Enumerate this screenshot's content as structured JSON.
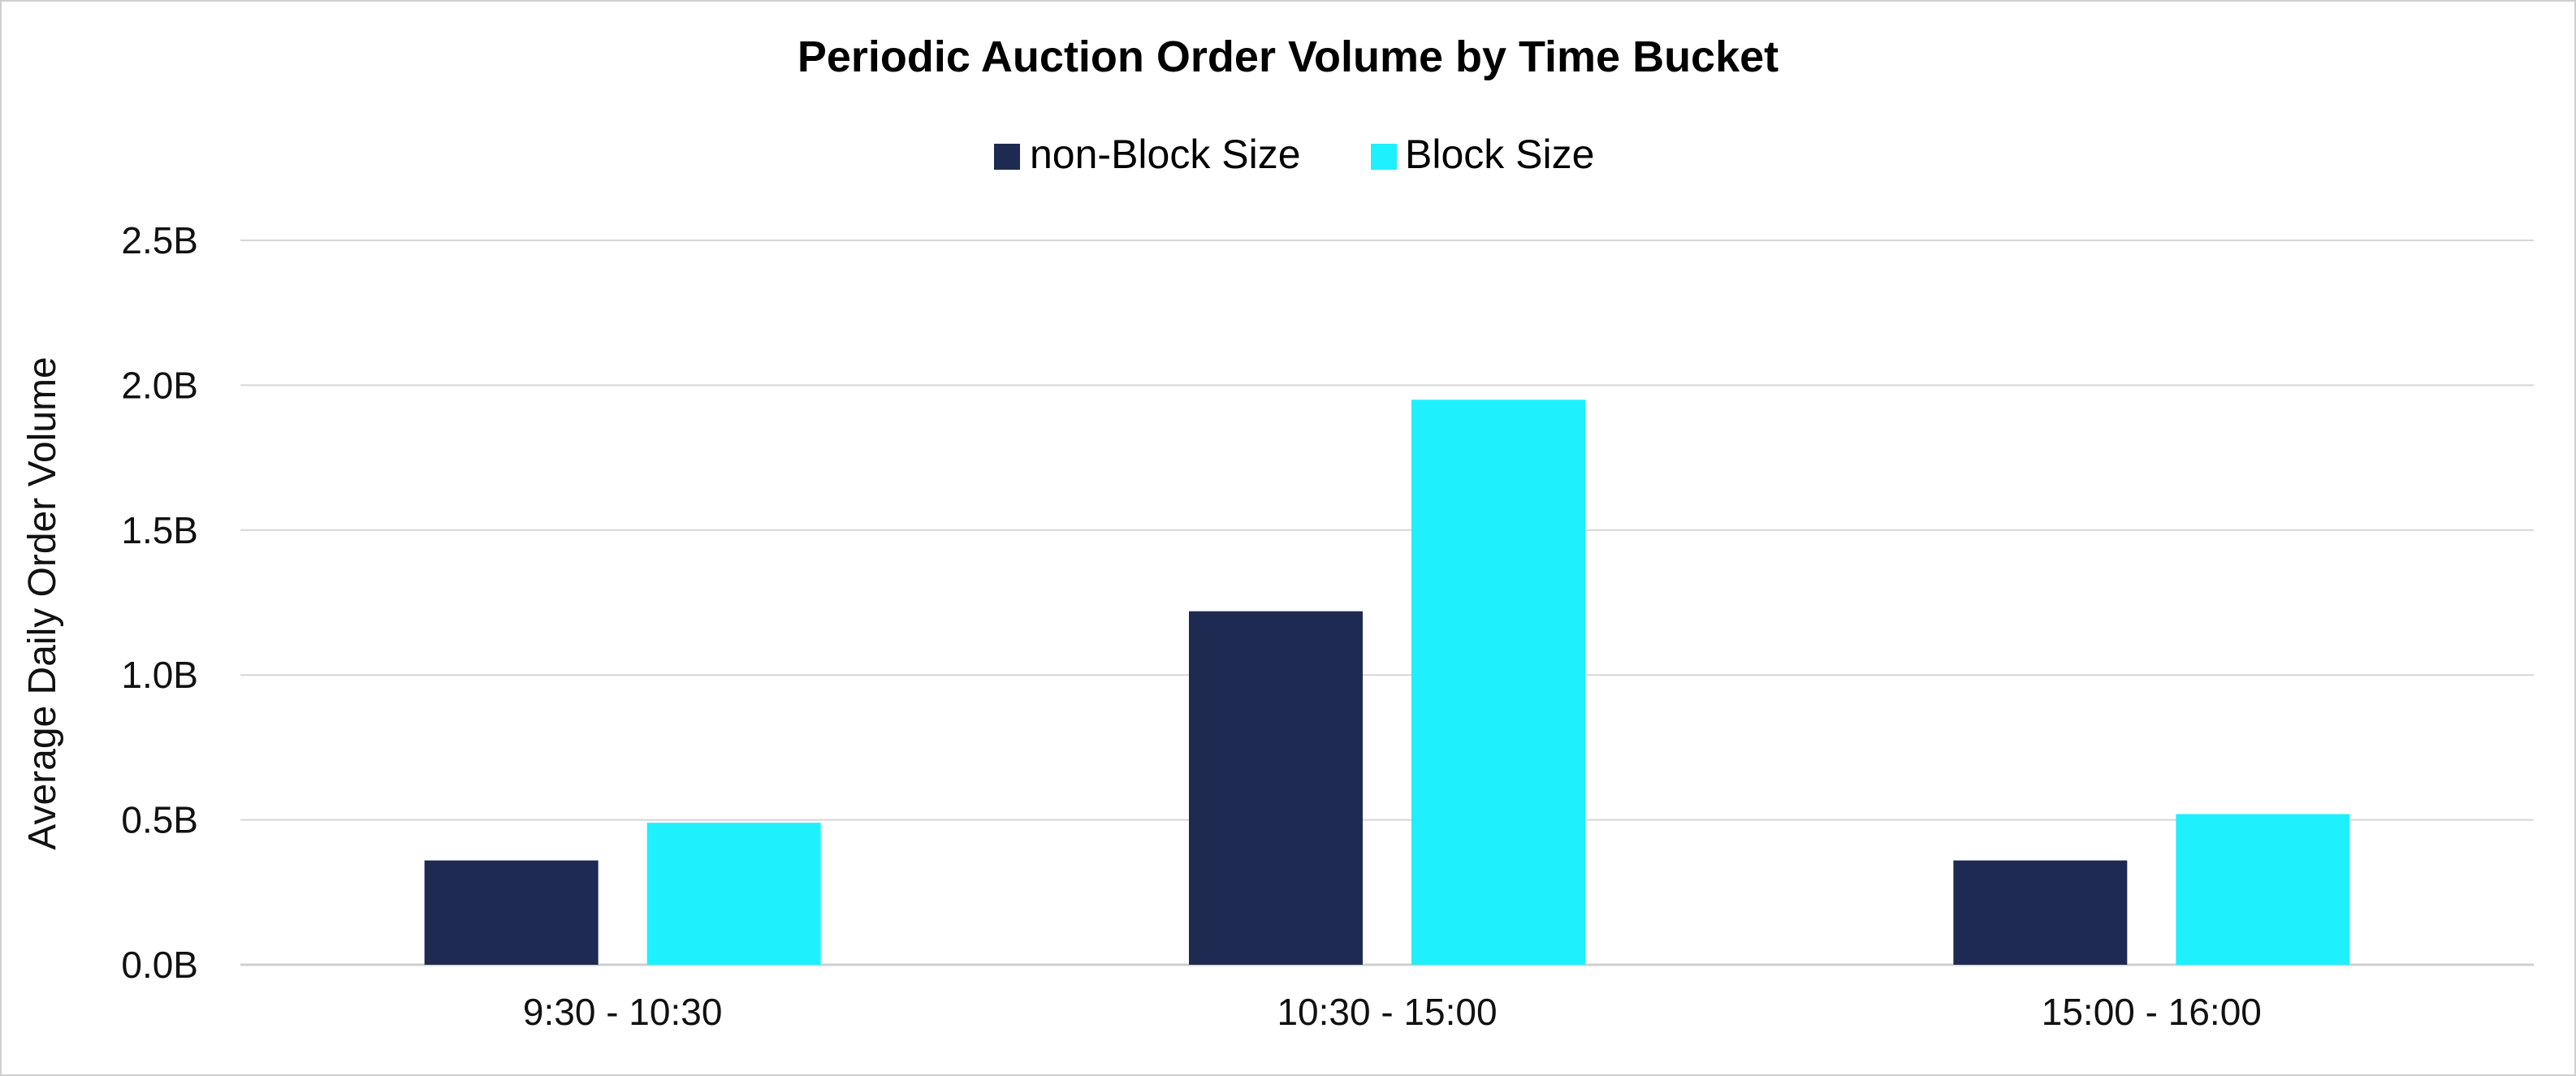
{
  "chart_data": {
    "type": "bar",
    "title": "Periodic Auction Order Volume by Time Bucket",
    "xlabel": "",
    "ylabel": "Average Daily Order Volume",
    "categories": [
      "9:30 - 10:30",
      "10:30 - 15:00",
      "15:00 - 16:00"
    ],
    "series": [
      {
        "name": "non-Block Size",
        "color": "#1f2a52",
        "values": [
          0.36,
          1.22,
          0.36
        ]
      },
      {
        "name": "Block Size",
        "color": "#1ff0fd",
        "values": [
          0.49,
          1.95,
          0.52
        ]
      }
    ],
    "ylim": [
      0,
      2.5
    ],
    "yticks": [
      0,
      0.5,
      1.0,
      1.5,
      2.0,
      2.5
    ],
    "ytick_labels": [
      "0.0B",
      "0.5B",
      "1.0B",
      "1.5B",
      "2.0B",
      "2.5B"
    ],
    "grid": true,
    "legend_position": "top-center"
  }
}
